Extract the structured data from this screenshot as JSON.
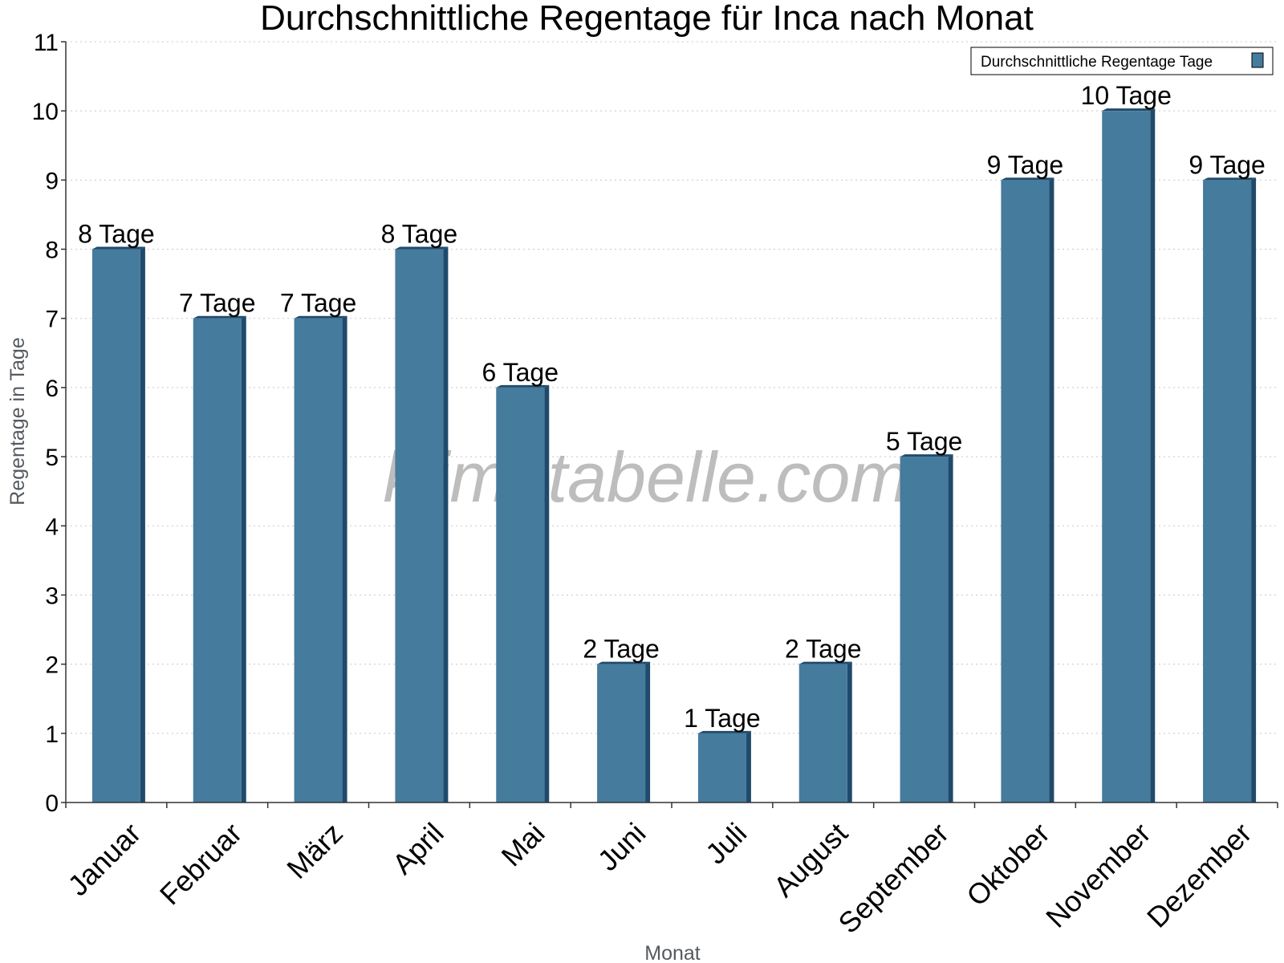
{
  "chart_data": {
    "type": "bar",
    "title": "Durchschnittliche Regentage für Inca nach Monat",
    "xlabel": "Monat",
    "ylabel": "Regentage in Tage",
    "categories": [
      "Januar",
      "Februar",
      "März",
      "April",
      "Mai",
      "Juni",
      "Juli",
      "August",
      "September",
      "Oktober",
      "November",
      "Dezember"
    ],
    "series": [
      {
        "name": "Durchschnittliche Regentage Tage",
        "values": [
          8,
          7,
          7,
          8,
          6,
          2,
          1,
          2,
          5,
          9,
          10,
          9
        ],
        "color": "#457b9d",
        "side_color": "#1f4a6b"
      }
    ],
    "data_labels": [
      "8 Tage",
      "7 Tage",
      "7 Tage",
      "8 Tage",
      "6 Tage",
      "2 Tage",
      "1 Tage",
      "2 Tage",
      "5 Tage",
      "9 Tage",
      "10 Tage",
      "9 Tage"
    ],
    "ylim": [
      0,
      11
    ],
    "yticks": [
      0,
      1,
      2,
      3,
      4,
      5,
      6,
      7,
      8,
      9,
      10,
      11
    ],
    "grid": true,
    "legend_position": "top-right"
  },
  "watermark": "klimatabelle.com"
}
